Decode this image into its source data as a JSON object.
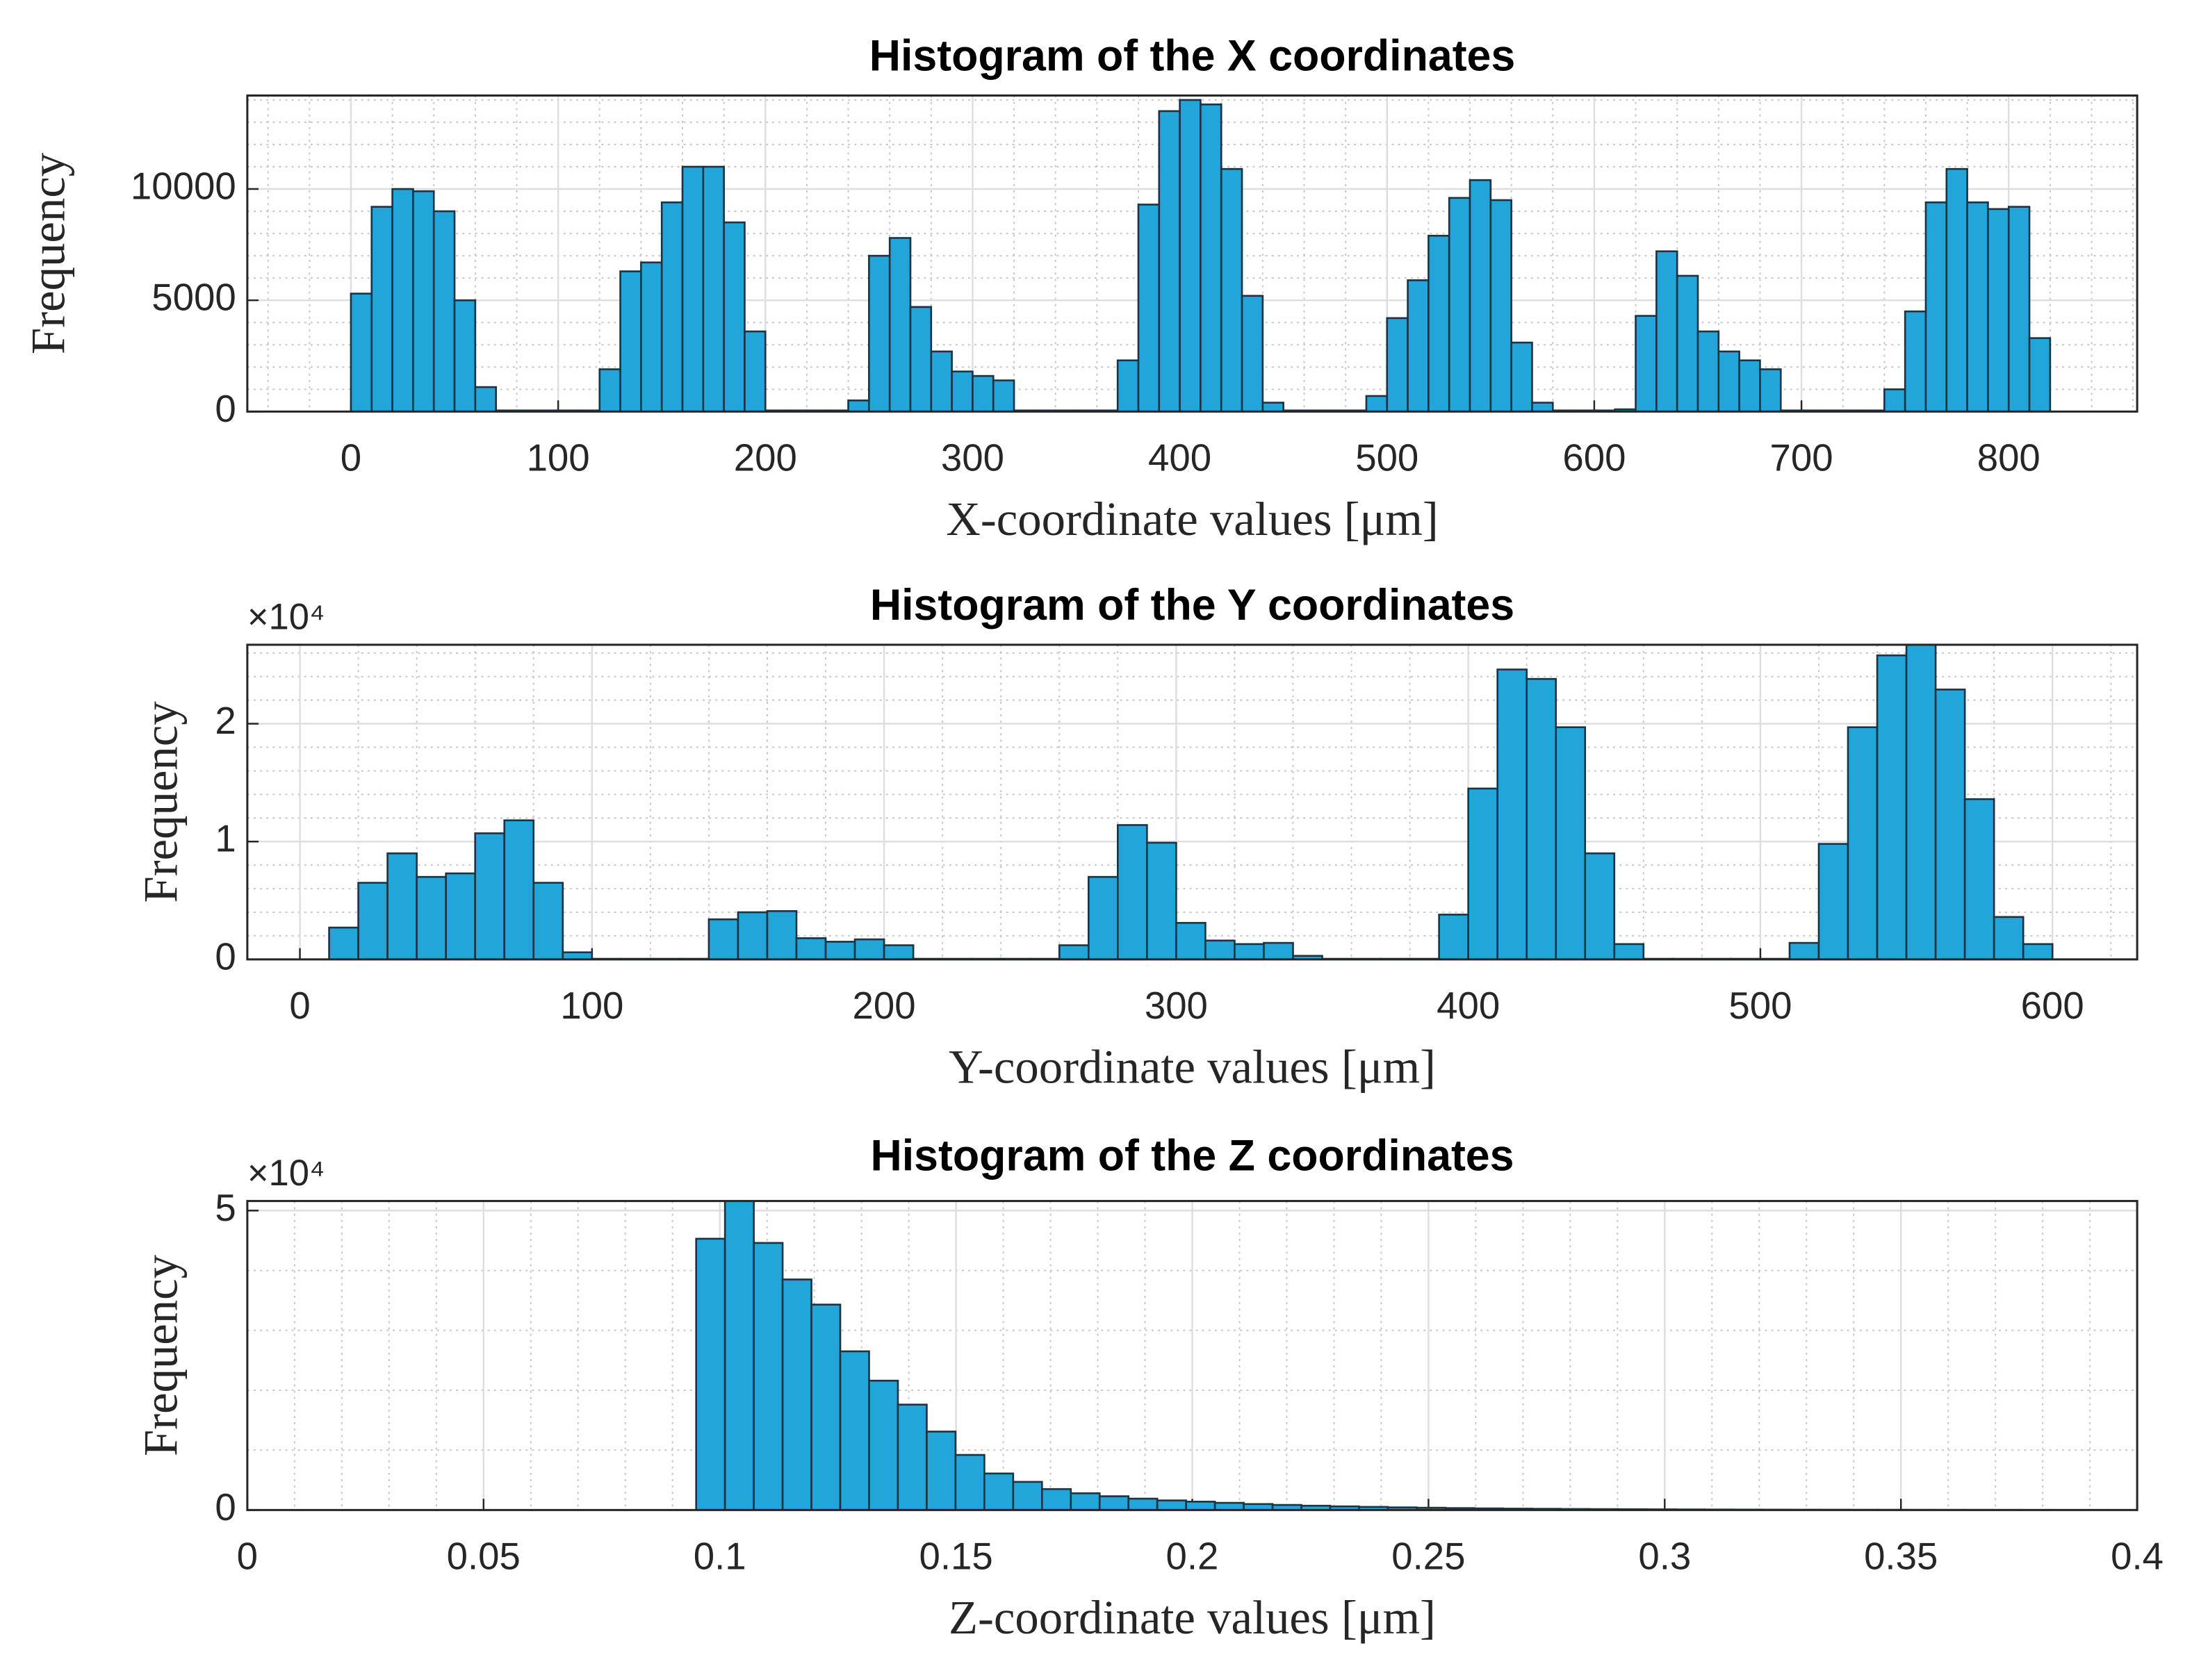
{
  "chart_data": [
    {
      "type": "histogram",
      "title": "Histogram of the X coordinates",
      "xlabel": "X-coordinate values [μm]",
      "ylabel": "Frequency",
      "bins": [
        0,
        10,
        20,
        30,
        40,
        50,
        60,
        70,
        80,
        90,
        100,
        110,
        120,
        130,
        140,
        150,
        160,
        170,
        180,
        190,
        200,
        210,
        220,
        230,
        240,
        250,
        260,
        270,
        280,
        290,
        300,
        310,
        320,
        330,
        340,
        350,
        360,
        370,
        380,
        390,
        400,
        410,
        420,
        430,
        440,
        450,
        460,
        470,
        480,
        490,
        500,
        510,
        520,
        530,
        540,
        550,
        560,
        570,
        580,
        590,
        600,
        610,
        620,
        630,
        640,
        650,
        660,
        670,
        680,
        690,
        700,
        710,
        720,
        730,
        740,
        750,
        760,
        770,
        780,
        790,
        800,
        810,
        820
      ],
      "values": [
        5300,
        9200,
        10000,
        9900,
        9000,
        5000,
        1100,
        50,
        50,
        50,
        50,
        50,
        1900,
        6300,
        6700,
        9400,
        11000,
        11000,
        8500,
        3600,
        50,
        50,
        50,
        50,
        500,
        7000,
        7800,
        4700,
        2700,
        1800,
        1600,
        1400,
        50,
        50,
        50,
        50,
        50,
        2300,
        9300,
        13500,
        14000,
        13800,
        10900,
        5200,
        400,
        50,
        50,
        50,
        50,
        700,
        4200,
        5900,
        7900,
        9600,
        10400,
        9500,
        3100,
        400,
        50,
        50,
        50,
        100,
        4300,
        7200,
        6100,
        3600,
        2700,
        2300,
        1900,
        50,
        50,
        50,
        50,
        50,
        1000,
        4500,
        9400,
        10900,
        9400,
        9100,
        9200,
        3300
      ],
      "color": "#22a6d9",
      "edge_color": "#1b3443",
      "xlim": [
        -50,
        862
      ],
      "xticks": [
        0,
        100,
        200,
        300,
        400,
        500,
        600,
        700,
        800
      ],
      "ylim": [
        0,
        14200
      ],
      "yticks": [
        0,
        5000,
        10000
      ],
      "grid": true,
      "minor_grid": true
    },
    {
      "type": "histogram",
      "title": "Histogram of the Y coordinates",
      "xlabel": "Y-coordinate values [μm]",
      "ylabel": "Frequency",
      "y_multiplier": "×10⁴",
      "bins": [
        10,
        20,
        30,
        40,
        50,
        60,
        70,
        80,
        90,
        100,
        110,
        120,
        130,
        140,
        150,
        160,
        170,
        180,
        190,
        200,
        210,
        220,
        230,
        240,
        250,
        260,
        270,
        280,
        290,
        300,
        310,
        320,
        330,
        340,
        350,
        360,
        370,
        380,
        390,
        400,
        410,
        420,
        430,
        440,
        450,
        460,
        470,
        480,
        490,
        500,
        510,
        520,
        530,
        540,
        550,
        560,
        570,
        580,
        590,
        600
      ],
      "values": [
        2700,
        6500,
        9000,
        7000,
        7300,
        10700,
        11800,
        6500,
        600,
        50,
        50,
        50,
        50,
        3400,
        4000,
        4100,
        1800,
        1500,
        1700,
        1200,
        50,
        50,
        50,
        50,
        50,
        1200,
        7000,
        11400,
        9900,
        3100,
        1600,
        1300,
        1400,
        300,
        50,
        50,
        50,
        50,
        3800,
        14500,
        24600,
        23800,
        19700,
        9000,
        1300,
        50,
        50,
        50,
        50,
        50,
        1400,
        9800,
        19700,
        25800,
        26700,
        22900,
        13600,
        3600,
        1300
      ],
      "color": "#22a6d9",
      "edge_color": "#1b3443",
      "xlim": [
        -18,
        629
      ],
      "xticks": [
        0,
        100,
        200,
        300,
        400,
        500,
        600
      ],
      "ylim": [
        0,
        26700
      ],
      "yticks": [
        0,
        {
          "value": 10000,
          "label": "1"
        },
        {
          "value": 20000,
          "label": "2"
        }
      ],
      "grid": true,
      "minor_grid": true
    },
    {
      "type": "histogram",
      "title": "Histogram of the Z coordinates",
      "xlabel": "Z-coordinate values [μm]",
      "ylabel": "Frequency",
      "y_multiplier": "×10⁴",
      "bins": [
        0.095,
        0.1011,
        0.1072,
        0.1133,
        0.1194,
        0.1255,
        0.1316,
        0.1377,
        0.1438,
        0.1499,
        0.156,
        0.1621,
        0.1682,
        0.1743,
        0.1804,
        0.1865,
        0.1926,
        0.1987,
        0.2048,
        0.2109,
        0.217,
        0.2231,
        0.2292,
        0.2353,
        0.2414,
        0.2475,
        0.2536,
        0.2597,
        0.2658,
        0.2719,
        0.278,
        0.2841,
        0.2902,
        0.2963,
        0.3024,
        0.3085,
        0.3146,
        0.3207,
        0.3268,
        0.3329,
        0.339,
        0.3451,
        0.3512,
        0.3573,
        0.3634,
        0.3695,
        0.3756,
        0.3817,
        0.3878,
        0.3939,
        0.4
      ],
      "values": [
        45300,
        51600,
        44600,
        38500,
        34300,
        26500,
        21600,
        17600,
        13100,
        9200,
        6100,
        4700,
        3500,
        2800,
        2300,
        1900,
        1600,
        1400,
        1200,
        1000,
        850,
        720,
        610,
        520,
        440,
        380,
        320,
        270,
        230,
        200,
        170,
        150,
        130,
        110,
        95,
        80,
        70,
        60,
        52,
        45,
        40,
        35,
        30,
        26,
        23,
        20,
        18,
        16,
        14,
        12
      ],
      "color": "#22a6d9",
      "edge_color": "#1b3443",
      "xlim": [
        0,
        0.4
      ],
      "xticks": [
        0,
        0.05,
        0.1,
        0.15,
        0.2,
        0.25,
        0.3,
        0.35,
        0.4
      ],
      "ylim": [
        0,
        51600
      ],
      "yticks": [
        0,
        {
          "value": 50000,
          "label": "5"
        }
      ],
      "grid": true,
      "minor_grid": true
    }
  ]
}
